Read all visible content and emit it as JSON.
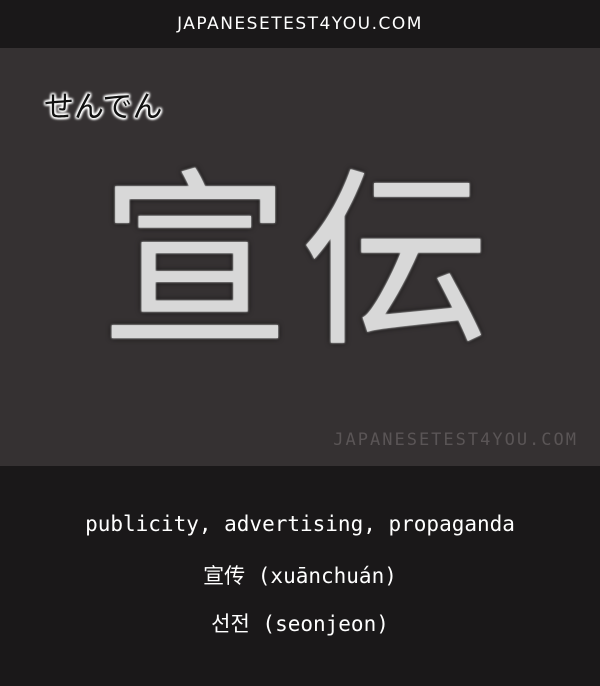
{
  "header": {
    "site": "JAPANESETEST4YOU.COM"
  },
  "card": {
    "reading": "せんでん",
    "kanji": "宣伝",
    "watermark": "JAPANESETEST4YOU.COM"
  },
  "meanings": {
    "english": "publicity, advertising, propaganda",
    "chinese": "宣传 (xuānchuán)",
    "korean": "선전 (seonjeon)"
  }
}
